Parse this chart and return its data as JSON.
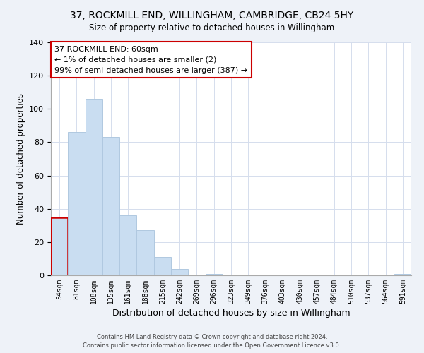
{
  "title": "37, ROCKMILL END, WILLINGHAM, CAMBRIDGE, CB24 5HY",
  "subtitle": "Size of property relative to detached houses in Willingham",
  "xlabel": "Distribution of detached houses by size in Willingham",
  "ylabel": "Number of detached properties",
  "bar_labels": [
    "54sqm",
    "81sqm",
    "108sqm",
    "135sqm",
    "161sqm",
    "188sqm",
    "215sqm",
    "242sqm",
    "269sqm",
    "296sqm",
    "323sqm",
    "349sqm",
    "376sqm",
    "403sqm",
    "430sqm",
    "457sqm",
    "484sqm",
    "510sqm",
    "537sqm",
    "564sqm",
    "591sqm"
  ],
  "bar_values": [
    35,
    86,
    106,
    83,
    36,
    27,
    11,
    4,
    0,
    1,
    0,
    0,
    0,
    0,
    0,
    0,
    0,
    0,
    0,
    0,
    1
  ],
  "bar_color_normal": "#c9ddf1",
  "bar_edge_color_normal": "#b0c8e0",
  "bar_edge_color_highlight": "#cc0000",
  "highlight_index": 0,
  "ylim": [
    0,
    140
  ],
  "yticks": [
    0,
    20,
    40,
    60,
    80,
    100,
    120,
    140
  ],
  "annotation_title": "37 ROCKMILL END: 60sqm",
  "annotation_line1": "← 1% of detached houses are smaller (2)",
  "annotation_line2": "99% of semi-detached houses are larger (387) →",
  "annotation_box_color": "#ffffff",
  "annotation_border_color": "#cc0000",
  "footer_line1": "Contains HM Land Registry data © Crown copyright and database right 2024.",
  "footer_line2": "Contains public sector information licensed under the Open Government Licence v3.0.",
  "background_color": "#eef2f8",
  "plot_bg_color": "#ffffff",
  "grid_color": "#d5dded"
}
